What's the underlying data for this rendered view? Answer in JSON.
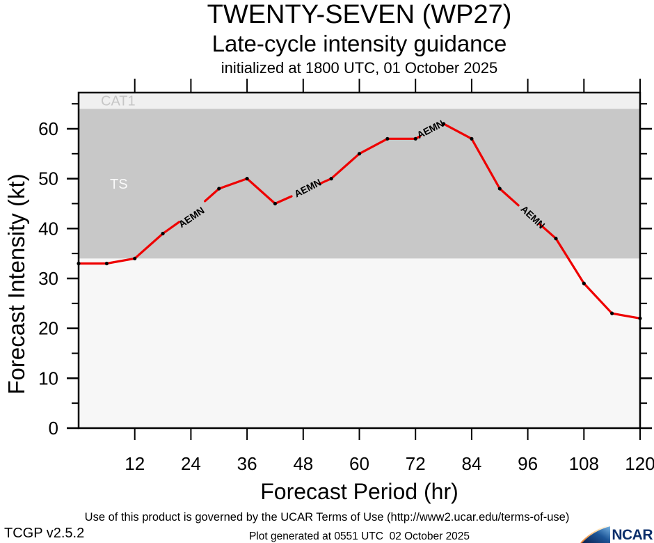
{
  "header": {
    "title": "TWENTY-SEVEN (WP27)",
    "subtitle": "Late-cycle intensity guidance",
    "init_line": "initialized at 1800 UTC, 01 October 2025"
  },
  "axes": {
    "x_title": "Forecast Period (hr)",
    "y_title": "Forecast Intensity (kt)"
  },
  "footer": {
    "terms": "Use of this product is governed by the UCAR Terms of Use (http://www2.ucar.edu/terms-of-use)",
    "version": "TCGP v2.5.2",
    "generated": "Plot generated at 0551 UTC  02 October 2025",
    "ncar_wordmark": "NCAR"
  },
  "colors": {
    "line_red": "#ee0000",
    "marker_black": "#000000",
    "frame_black": "#000000",
    "plot_background": "#f7f7f7",
    "outside_background": "#ffffff",
    "ncar_navy": "#0b2f6b"
  },
  "chart_data": {
    "type": "line",
    "title": "TWENTY-SEVEN (WP27)",
    "subtitle": "Late-cycle intensity guidance",
    "init_line": "initialized at 1800 UTC, 01 October 2025",
    "xlabel": "Forecast Period (hr)",
    "ylabel": "Forecast Intensity (kt)",
    "xlim": [
      0,
      120
    ],
    "ylim": [
      0,
      67.25
    ],
    "x_ticks": [
      12,
      24,
      36,
      48,
      60,
      72,
      84,
      96,
      108,
      120
    ],
    "y_ticks_major": [
      0,
      10,
      20,
      30,
      40,
      50,
      60
    ],
    "y_ticks_minor": [
      5,
      15,
      25,
      35,
      45,
      55,
      65
    ],
    "grid": false,
    "bands": [
      {
        "label": "TS",
        "from": 34,
        "to": 64,
        "color": "#c8c8c8",
        "label_color": "#fafafa",
        "label_offset_x": 45
      },
      {
        "label": "CAT1",
        "from": 64,
        "to": 67.25,
        "color": "#f0f0f0",
        "label_color": "#c6c6c6",
        "label_offset_x": 32
      }
    ],
    "series": [
      {
        "name": "AEMN",
        "color": "#ee0000",
        "x": [
          0,
          6,
          12,
          18,
          24,
          30,
          36,
          42,
          48,
          54,
          60,
          66,
          72,
          78,
          84,
          90,
          96,
          102,
          108,
          114,
          120
        ],
        "y": [
          33,
          33,
          34,
          39,
          43,
          48,
          50,
          45,
          47.5,
          50,
          55,
          58,
          58,
          61,
          58,
          48,
          43,
          38,
          29,
          23,
          22
        ],
        "label_hours_without_marker": [
          24,
          48,
          96
        ]
      }
    ],
    "line_label_gaps": [
      [
        21.5,
        27
      ],
      [
        45.5,
        51.5
      ],
      [
        73,
        77.8
      ],
      [
        94,
        98.5
      ]
    ],
    "line_labels": [
      {
        "text": "AEMN",
        "hour": 24.5,
        "kt": 42.4,
        "angle": -34
      },
      {
        "text": "AEMN",
        "hour": 49.3,
        "kt": 48.2,
        "angle": -27
      },
      {
        "text": "AEMN",
        "hour": 75.5,
        "kt": 60.0,
        "angle": -27
      },
      {
        "text": "AEMN",
        "hour": 96.6,
        "kt": 42.5,
        "angle": 43
      }
    ]
  }
}
